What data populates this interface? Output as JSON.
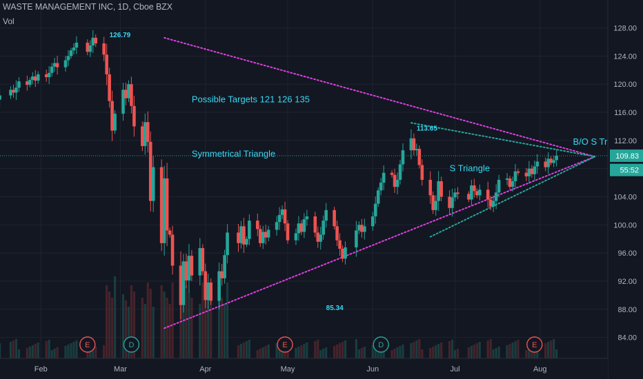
{
  "header": {
    "title": "WASTE MANAGEMENT INC, 1D, Cboe BZX",
    "volume_label": "Vol"
  },
  "colors": {
    "background": "#131722",
    "up": "#26a69a",
    "down": "#ef5350",
    "trendline": "#e040e0",
    "small_triangle": "#26a69a",
    "annotation": "#36d9f2",
    "axis_text": "#b2b5be",
    "grid": "#1f2430"
  },
  "chart_data": {
    "type": "candlestick",
    "y_axis": {
      "ticks": [
        84,
        88,
        92,
        96,
        100,
        104,
        108,
        112,
        116,
        120,
        124,
        128
      ],
      "tick_labels": [
        "84.00",
        "88.00",
        "92.00",
        "96.00",
        "100.00",
        "104.00",
        "108.00",
        "112.00",
        "116.00",
        "120.00",
        "124.00",
        "128.00"
      ],
      "range": [
        82.5,
        129.5
      ]
    },
    "x_axis": {
      "months": [
        {
          "label": "Feb",
          "date": "2020-02-01"
        },
        {
          "label": "Mar",
          "date": "2020-03-01"
        },
        {
          "label": "Apr",
          "date": "2020-04-01"
        },
        {
          "label": "May",
          "date": "2020-05-01"
        },
        {
          "label": "Jun",
          "date": "2020-06-01"
        },
        {
          "label": "Jul",
          "date": "2020-07-01"
        },
        {
          "label": "Aug",
          "date": "2020-08-01"
        }
      ],
      "range": [
        "2020-01-09",
        "2020-08-27"
      ]
    },
    "price_labels": {
      "last_price": {
        "text": "109.83",
        "value": 109.83
      },
      "countdown": {
        "text": "55:52",
        "value": 107.8
      }
    },
    "candles": [
      {
        "d": "2020-01-10",
        "c": 116.0
      },
      {
        "d": "2020-01-13",
        "c": 116.3
      },
      {
        "d": "2020-01-14",
        "c": 116.9
      },
      {
        "d": "2020-01-15",
        "c": 117.3
      },
      {
        "d": "2020-01-16",
        "c": 117.8
      },
      {
        "d": "2020-01-17",
        "c": 118.4
      },
      {
        "d": "2020-01-21",
        "c": 119.2
      },
      {
        "d": "2020-01-22",
        "c": 118.8
      },
      {
        "d": "2020-01-23",
        "c": 119.5
      },
      {
        "d": "2020-01-24",
        "c": 120.4
      },
      {
        "d": "2020-01-27",
        "c": 119.9
      },
      {
        "d": "2020-01-28",
        "c": 120.6
      },
      {
        "d": "2020-01-29",
        "c": 121.1
      },
      {
        "d": "2020-01-30",
        "c": 120.5
      },
      {
        "d": "2020-01-31",
        "c": 121.4
      },
      {
        "d": "2020-02-03",
        "c": 121.0
      },
      {
        "d": "2020-02-04",
        "c": 121.6
      },
      {
        "d": "2020-02-05",
        "c": 122.5
      },
      {
        "d": "2020-02-06",
        "c": 123.0
      },
      {
        "d": "2020-02-07",
        "c": 122.4
      },
      {
        "d": "2020-02-10",
        "c": 123.4
      },
      {
        "d": "2020-02-11",
        "c": 124.0
      },
      {
        "d": "2020-02-12",
        "c": 124.8
      },
      {
        "d": "2020-02-13",
        "c": 125.2
      },
      {
        "d": "2020-02-14",
        "c": 125.9
      },
      {
        "d": "2020-02-18",
        "c": 124.6
      },
      {
        "d": "2020-02-19",
        "c": 125.5
      },
      {
        "d": "2020-02-20",
        "c": 126.6
      },
      {
        "d": "2020-02-21",
        "c": 125.8
      },
      {
        "d": "2020-02-24",
        "c": 124.2
      },
      {
        "d": "2020-02-25",
        "c": 121.4
      },
      {
        "d": "2020-02-26",
        "c": 117.6
      },
      {
        "d": "2020-02-27",
        "c": 113.4
      },
      {
        "d": "2020-02-28",
        "c": 115.8
      },
      {
        "d": "2020-03-02",
        "c": 119.2
      },
      {
        "d": "2020-03-03",
        "c": 118.0
      },
      {
        "d": "2020-03-04",
        "c": 120.0
      },
      {
        "d": "2020-03-05",
        "c": 116.9
      },
      {
        "d": "2020-03-06",
        "c": 114.0
      },
      {
        "d": "2020-03-09",
        "c": 111.2
      },
      {
        "d": "2020-03-10",
        "c": 114.6
      },
      {
        "d": "2020-03-11",
        "c": 111.8
      },
      {
        "d": "2020-03-12",
        "c": 103.4
      },
      {
        "d": "2020-03-13",
        "c": 108.2
      },
      {
        "d": "2020-03-16",
        "c": 97.4
      },
      {
        "d": "2020-03-17",
        "c": 106.6
      },
      {
        "d": "2020-03-18",
        "c": 99.2
      },
      {
        "d": "2020-03-19",
        "c": 98.6
      },
      {
        "d": "2020-03-20",
        "c": 94.2
      },
      {
        "d": "2020-03-23",
        "c": 88.6
      },
      {
        "d": "2020-03-24",
        "c": 94.8
      },
      {
        "d": "2020-03-25",
        "c": 92.1
      },
      {
        "d": "2020-03-26",
        "c": 95.6
      },
      {
        "d": "2020-03-27",
        "c": 92.8
      },
      {
        "d": "2020-03-30",
        "c": 96.7
      },
      {
        "d": "2020-03-31",
        "c": 93.4
      },
      {
        "d": "2020-04-01",
        "c": 89.3
      },
      {
        "d": "2020-04-02",
        "c": 91.8
      },
      {
        "d": "2020-04-03",
        "c": 89.2
      },
      {
        "d": "2020-04-06",
        "c": 93.4
      },
      {
        "d": "2020-04-07",
        "c": 92.4
      },
      {
        "d": "2020-04-08",
        "c": 95.7
      },
      {
        "d": "2020-04-09",
        "c": 98.9
      },
      {
        "d": "2020-04-13",
        "c": 97.4
      },
      {
        "d": "2020-04-14",
        "c": 99.8
      },
      {
        "d": "2020-04-15",
        "c": 97.2
      },
      {
        "d": "2020-04-16",
        "c": 98.0
      },
      {
        "d": "2020-04-17",
        "c": 100.6
      },
      {
        "d": "2020-04-20",
        "c": 99.4
      },
      {
        "d": "2020-04-21",
        "c": 97.4
      },
      {
        "d": "2020-04-22",
        "c": 99.0
      },
      {
        "d": "2020-04-23",
        "c": 98.2
      },
      {
        "d": "2020-04-24",
        "c": 99.3
      },
      {
        "d": "2020-04-27",
        "c": 100.4
      },
      {
        "d": "2020-04-28",
        "c": 101.4
      },
      {
        "d": "2020-04-29",
        "c": 102.2
      },
      {
        "d": "2020-04-30",
        "c": 100.2
      },
      {
        "d": "2020-05-01",
        "c": 97.8
      },
      {
        "d": "2020-05-04",
        "c": 98.8
      },
      {
        "d": "2020-05-05",
        "c": 100.2
      },
      {
        "d": "2020-05-06",
        "c": 99.0
      },
      {
        "d": "2020-05-07",
        "c": 100.8
      },
      {
        "d": "2020-05-08",
        "c": 101.2
      },
      {
        "d": "2020-05-11",
        "c": 98.9
      },
      {
        "d": "2020-05-12",
        "c": 97.6
      },
      {
        "d": "2020-05-13",
        "c": 98.6
      },
      {
        "d": "2020-05-14",
        "c": 100.6
      },
      {
        "d": "2020-05-15",
        "c": 102.1
      },
      {
        "d": "2020-05-18",
        "c": 99.8
      },
      {
        "d": "2020-05-19",
        "c": 97.8
      },
      {
        "d": "2020-05-20",
        "c": 96.6
      },
      {
        "d": "2020-05-21",
        "c": 95.2
      },
      {
        "d": "2020-05-22",
        "c": 96.8
      },
      {
        "d": "2020-05-26",
        "c": 99.2
      },
      {
        "d": "2020-05-27",
        "c": 100.0
      },
      {
        "d": "2020-05-28",
        "c": 99.0
      },
      {
        "d": "2020-05-29",
        "c": 99.8
      },
      {
        "d": "2020-06-01",
        "c": 101.2
      },
      {
        "d": "2020-06-02",
        "c": 103.0
      },
      {
        "d": "2020-06-03",
        "c": 104.9
      },
      {
        "d": "2020-06-04",
        "c": 106.0
      },
      {
        "d": "2020-06-05",
        "c": 107.4
      },
      {
        "d": "2020-06-08",
        "c": 107.1
      },
      {
        "d": "2020-06-09",
        "c": 105.4
      },
      {
        "d": "2020-06-10",
        "c": 106.4
      },
      {
        "d": "2020-06-11",
        "c": 108.6
      },
      {
        "d": "2020-06-12",
        "c": 110.6
      },
      {
        "d": "2020-06-15",
        "c": 112.3
      },
      {
        "d": "2020-06-16",
        "c": 110.6
      },
      {
        "d": "2020-06-17",
        "c": 110.8
      },
      {
        "d": "2020-06-18",
        "c": 108.5
      },
      {
        "d": "2020-06-19",
        "c": 106.4
      },
      {
        "d": "2020-06-22",
        "c": 104.2
      },
      {
        "d": "2020-06-23",
        "c": 102.1
      },
      {
        "d": "2020-06-24",
        "c": 103.4
      },
      {
        "d": "2020-06-25",
        "c": 106.2
      },
      {
        "d": "2020-06-26",
        "c": 104.0
      },
      {
        "d": "2020-06-29",
        "c": 102.4
      },
      {
        "d": "2020-06-30",
        "c": 103.9
      },
      {
        "d": "2020-07-01",
        "c": 104.6
      },
      {
        "d": "2020-07-02",
        "c": 104.4
      },
      {
        "d": "2020-07-06",
        "c": 103.6
      },
      {
        "d": "2020-07-07",
        "c": 105.6
      },
      {
        "d": "2020-07-08",
        "c": 104.8
      },
      {
        "d": "2020-07-09",
        "c": 104.2
      },
      {
        "d": "2020-07-10",
        "c": 105.0
      },
      {
        "d": "2020-07-13",
        "c": 103.6
      },
      {
        "d": "2020-07-14",
        "c": 102.6
      },
      {
        "d": "2020-07-15",
        "c": 103.4
      },
      {
        "d": "2020-07-16",
        "c": 104.6
      },
      {
        "d": "2020-07-17",
        "c": 106.4
      },
      {
        "d": "2020-07-20",
        "c": 106.6
      },
      {
        "d": "2020-07-21",
        "c": 105.4
      },
      {
        "d": "2020-07-22",
        "c": 106.2
      },
      {
        "d": "2020-07-23",
        "c": 107.6
      },
      {
        "d": "2020-07-24",
        "c": 107.4
      },
      {
        "d": "2020-07-27",
        "c": 106.9
      },
      {
        "d": "2020-07-28",
        "c": 108.0
      },
      {
        "d": "2020-07-29",
        "c": 107.2
      },
      {
        "d": "2020-07-30",
        "c": 108.3
      },
      {
        "d": "2020-07-31",
        "c": 109.0
      },
      {
        "d": "2020-08-03",
        "c": 108.2
      },
      {
        "d": "2020-08-04",
        "c": 109.4
      },
      {
        "d": "2020-08-05",
        "c": 108.8
      },
      {
        "d": "2020-08-06",
        "c": 109.2
      },
      {
        "d": "2020-08-07",
        "c": 109.83
      }
    ],
    "start_open": 115.6,
    "event_markers": [
      {
        "label": "E",
        "date": "2020-02-18",
        "kind": "earnings"
      },
      {
        "label": "D",
        "date": "2020-03-05",
        "kind": "dividend"
      },
      {
        "label": "E",
        "date": "2020-04-30",
        "kind": "earnings"
      },
      {
        "label": "D",
        "date": "2020-06-04",
        "kind": "dividend"
      },
      {
        "label": "E",
        "date": "2020-07-30",
        "kind": "earnings"
      }
    ],
    "trendlines": [
      {
        "name": "upper",
        "style": "dotted",
        "color": "#e040e0",
        "from": {
          "d": "2020-03-17",
          "y": 126.6
        },
        "to": {
          "d": "2020-08-21",
          "y": 109.7
        }
      },
      {
        "name": "lower",
        "style": "dotted",
        "color": "#e040e0",
        "from": {
          "d": "2020-03-17",
          "y": 85.3
        },
        "to": {
          "d": "2020-08-21",
          "y": 109.7
        }
      },
      {
        "name": "s-upper",
        "style": "dotted",
        "color": "#26a69a",
        "from": {
          "d": "2020-06-15",
          "y": 114.5
        },
        "to": {
          "d": "2020-08-21",
          "y": 109.7
        }
      },
      {
        "name": "s-lower",
        "style": "dotted",
        "color": "#26a69a",
        "from": {
          "d": "2020-06-22",
          "y": 98.3
        },
        "to": {
          "d": "2020-08-21",
          "y": 109.7
        }
      }
    ],
    "hline": {
      "value": 109.83,
      "style": "dotted"
    },
    "annotations": [
      {
        "text": "126.79",
        "d": "2020-02-26",
        "y": 126.7,
        "size": 10
      },
      {
        "text": "Possible Targets  121  126  135",
        "d": "2020-03-27",
        "y": 117.4,
        "size": 13
      },
      {
        "text": "113.65",
        "d": "2020-06-17",
        "y": 113.4,
        "size": 10
      },
      {
        "text": "Symmetrical Triangle",
        "d": "2020-03-27",
        "y": 109.7,
        "size": 13
      },
      {
        "text": "S Triangle",
        "d": "2020-06-29",
        "y": 107.6,
        "size": 13
      },
      {
        "text": "B/O S Tri",
        "d": "2020-08-13",
        "y": 111.4,
        "size": 13
      },
      {
        "text": "85.34",
        "d": "2020-05-15",
        "y": 87.9,
        "size": 10
      }
    ]
  }
}
